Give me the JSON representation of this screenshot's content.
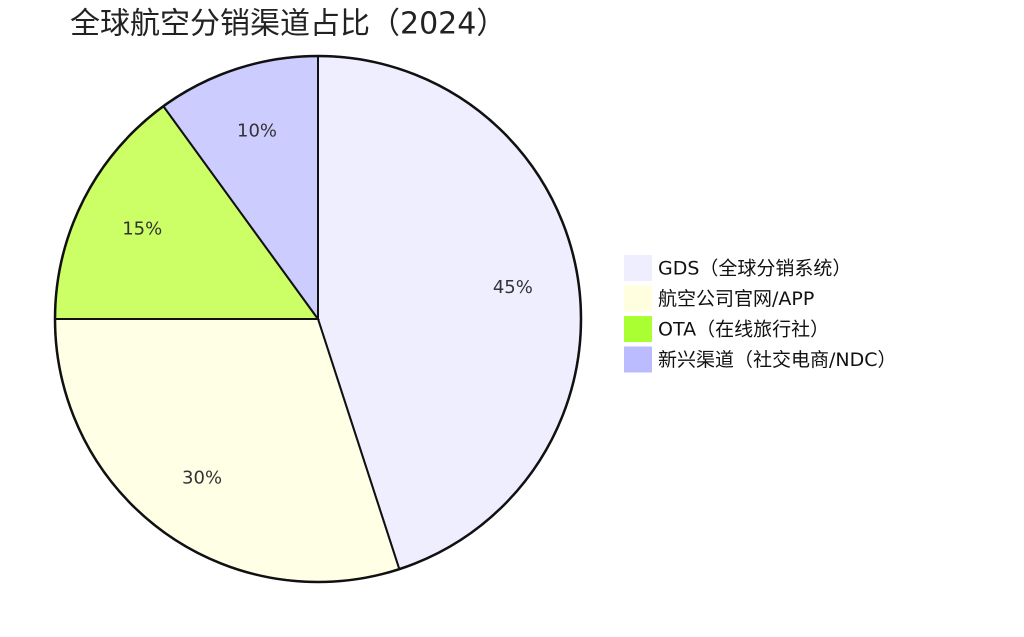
{
  "chart_data": {
    "type": "pie",
    "title": "全球航空分销渠道占比（2024）",
    "categories": [
      "GDS（全球分销系统）",
      "航空公司官网/APP",
      "OTA（在线旅行社）",
      "新兴渠道（社交电商/NDC）"
    ],
    "values": [
      45,
      30,
      15,
      10
    ],
    "value_labels": [
      "45%",
      "30%",
      "15%",
      "10%"
    ],
    "colors": [
      "#eeeeff",
      "#ffffe6",
      "#ccff66",
      "#ccccff"
    ],
    "legend_colors": [
      "#eeeeff",
      "#ffffe0",
      "#aaff33",
      "#bbbbff"
    ],
    "legend": "right"
  }
}
